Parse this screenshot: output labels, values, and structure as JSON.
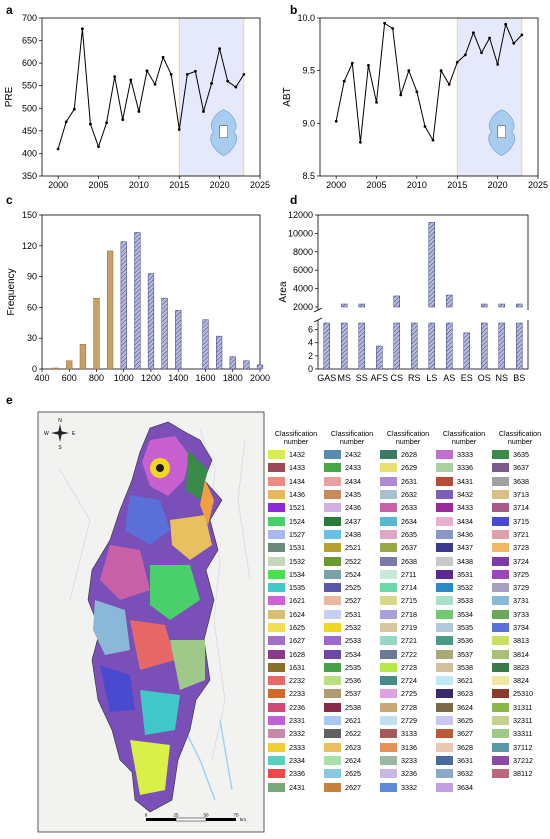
{
  "panel_labels": {
    "a": "a",
    "b": "b",
    "c": "c",
    "d": "d",
    "e": "e"
  },
  "compass": {
    "n": "N",
    "s": "S",
    "e": "E",
    "w": "W"
  },
  "scalebar": {
    "ticks": [
      "0",
      "25",
      "50",
      "75"
    ],
    "unit": "km"
  },
  "legend_header": "Classification number",
  "chart_data": [
    {
      "panel": "a",
      "type": "line",
      "ylabel": "PRE",
      "xlabel": "",
      "xlim": [
        1998,
        2025
      ],
      "ylim": [
        350,
        700
      ],
      "xticks": [
        "2000",
        "2005",
        "2010",
        "2015",
        "2020",
        "2025"
      ],
      "yticks": [
        "350",
        "400",
        "450",
        "500",
        "550",
        "600",
        "650",
        "700"
      ],
      "x": [
        2000,
        2001,
        2002,
        2003,
        2004,
        2005,
        2006,
        2007,
        2008,
        2009,
        2010,
        2011,
        2012,
        2013,
        2014,
        2015,
        2016,
        2017,
        2018,
        2019,
        2020,
        2021,
        2022,
        2023
      ],
      "values": [
        410,
        470,
        498,
        676,
        465,
        415,
        468,
        570,
        475,
        563,
        493,
        583,
        553,
        613,
        575,
        453,
        575,
        582,
        493,
        555,
        632,
        560,
        547,
        575
      ],
      "highlight_range": [
        2015,
        2023
      ]
    },
    {
      "panel": "b",
      "type": "line",
      "ylabel": "ABT",
      "xlabel": "",
      "xlim": [
        1998,
        2025
      ],
      "ylim": [
        8.5,
        10.0
      ],
      "xticks": [
        "2000",
        "2005",
        "2010",
        "2015",
        "2020",
        "2025"
      ],
      "yticks": [
        "8.5",
        "9.0",
        "9.5",
        "10.0"
      ],
      "x": [
        2000,
        2001,
        2002,
        2003,
        2004,
        2005,
        2006,
        2007,
        2008,
        2009,
        2010,
        2011,
        2012,
        2013,
        2014,
        2015,
        2016,
        2017,
        2018,
        2019,
        2020,
        2021,
        2022,
        2023
      ],
      "values": [
        9.02,
        9.4,
        9.57,
        8.82,
        9.55,
        9.2,
        9.95,
        9.9,
        9.27,
        9.5,
        9.3,
        8.97,
        8.84,
        9.5,
        9.37,
        9.58,
        9.65,
        9.86,
        9.67,
        9.81,
        9.56,
        9.94,
        9.76,
        9.84
      ],
      "highlight_range": [
        2015,
        2023
      ]
    },
    {
      "panel": "c",
      "type": "bar",
      "ylabel": "Frequency",
      "xlabel": "",
      "xlim": [
        400,
        2000
      ],
      "ylim": [
        0,
        150
      ],
      "xticks": [
        "400",
        "600",
        "800",
        "1000",
        "1200",
        "1400",
        "1600",
        "1800",
        "2000"
      ],
      "yticks": [
        "0",
        "30",
        "60",
        "90",
        "120",
        "150"
      ],
      "series": [
        {
          "style": "solid",
          "x": [
            500,
            600,
            700,
            800,
            900
          ],
          "values": [
            1,
            8,
            24,
            69,
            115
          ]
        },
        {
          "style": "hatched",
          "x": [
            1000,
            1100,
            1200,
            1300,
            1400,
            1500,
            1600,
            1700,
            1800,
            1900,
            2000
          ],
          "values": [
            124,
            133,
            93,
            69,
            57,
            0,
            48,
            32,
            12,
            8,
            4
          ]
        }
      ]
    },
    {
      "panel": "d",
      "type": "bar",
      "ylabel": "Area",
      "xlabel": "",
      "categories": [
        "GAS",
        "MS",
        "SS",
        "AFS",
        "CS",
        "RS",
        "LS",
        "AS",
        "ES",
        "OS",
        "NS",
        "BS"
      ],
      "values": [
        7,
        350,
        1400,
        3.5,
        3200,
        7,
        11200,
        3300,
        5.5,
        350,
        550,
        350
      ],
      "axis_break": true,
      "yticks_upper": [
        "2000",
        "4000",
        "6000",
        "8000",
        "10000",
        "12000"
      ],
      "yticks_lower": [
        "0",
        "2",
        "4",
        "6"
      ]
    }
  ],
  "legend_columns": [
    {
      "items": [
        {
          "code": "1432",
          "color": "#d8f048"
        },
        {
          "code": "1433",
          "color": "#9c4a5a"
        },
        {
          "code": "1434",
          "color": "#ee8a80"
        },
        {
          "code": "1436",
          "color": "#e8b860"
        },
        {
          "code": "1521",
          "color": "#8a2ad8"
        },
        {
          "code": "1524",
          "color": "#4ad06a"
        },
        {
          "code": "1527",
          "color": "#aab8f0"
        },
        {
          "code": "1531",
          "color": "#6a8a7a"
        },
        {
          "code": "1532",
          "color": "#c4d8b8"
        },
        {
          "code": "1534",
          "color": "#4ae04a"
        },
        {
          "code": "1535",
          "color": "#40c8c8"
        },
        {
          "code": "1621",
          "color": "#d060d8"
        },
        {
          "code": "1624",
          "color": "#d8c070"
        },
        {
          "code": "1625",
          "color": "#f0e050"
        },
        {
          "code": "1627",
          "color": "#a070c8"
        },
        {
          "code": "1628",
          "color": "#8a3a8a"
        },
        {
          "code": "1631",
          "color": "#8a7028"
        },
        {
          "code": "2232",
          "color": "#e86868"
        },
        {
          "code": "2233",
          "color": "#d06a28"
        },
        {
          "code": "2236",
          "color": "#d04878"
        },
        {
          "code": "2331",
          "color": "#c060d8"
        },
        {
          "code": "2332",
          "color": "#c88aa8"
        },
        {
          "code": "2333",
          "color": "#f0d030"
        },
        {
          "code": "2334",
          "color": "#58d0c0"
        },
        {
          "code": "2336",
          "color": "#f04848"
        },
        {
          "code": "2431",
          "color": "#78a878"
        }
      ]
    },
    {
      "items": [
        {
          "code": "2432",
          "color": "#5a8ab0"
        },
        {
          "code": "2433",
          "color": "#48a848"
        },
        {
          "code": "2434",
          "color": "#e8a0a0"
        },
        {
          "code": "2435",
          "color": "#c88a60"
        },
        {
          "code": "2436",
          "color": "#d0b0e0"
        },
        {
          "code": "2437",
          "color": "#2a7a3a"
        },
        {
          "code": "2438",
          "color": "#68c0e8"
        },
        {
          "code": "2521",
          "color": "#b8a030"
        },
        {
          "code": "2522",
          "color": "#6a9a30"
        },
        {
          "code": "2524",
          "color": "#7aa0a8"
        },
        {
          "code": "2525",
          "color": "#5a58a8"
        },
        {
          "code": "2527",
          "color": "#e8b8a0"
        },
        {
          "code": "2531",
          "color": "#c8d0f0"
        },
        {
          "code": "2532",
          "color": "#f0d820"
        },
        {
          "code": "2533",
          "color": "#9a6ad0"
        },
        {
          "code": "2534",
          "color": "#6a48a8"
        },
        {
          "code": "2535",
          "color": "#4aa048"
        },
        {
          "code": "2536",
          "color": "#b8e080"
        },
        {
          "code": "2537",
          "color": "#b09a70"
        },
        {
          "code": "2538",
          "color": "#8a2a4a"
        },
        {
          "code": "2621",
          "color": "#a8c8f0"
        },
        {
          "code": "2622",
          "color": "#606060"
        },
        {
          "code": "2623",
          "color": "#e8c060"
        },
        {
          "code": "2624",
          "color": "#a8e0a8"
        },
        {
          "code": "2625",
          "color": "#8ac8e0"
        },
        {
          "code": "2627",
          "color": "#c88040"
        }
      ]
    },
    {
      "items": [
        {
          "code": "2628",
          "color": "#3a7a68"
        },
        {
          "code": "2629",
          "color": "#e8e070"
        },
        {
          "code": "2631",
          "color": "#b08ad0"
        },
        {
          "code": "2632",
          "color": "#a8c0d0"
        },
        {
          "code": "2633",
          "color": "#c860a8"
        },
        {
          "code": "2634",
          "color": "#58b8d0"
        },
        {
          "code": "2635",
          "color": "#e0a8c8"
        },
        {
          "code": "2637",
          "color": "#98a848"
        },
        {
          "code": "2638",
          "color": "#7a7aa8"
        },
        {
          "code": "2711",
          "color": "#c8e8d8"
        },
        {
          "code": "2714",
          "color": "#6ad8a8"
        },
        {
          "code": "2715",
          "color": "#d8d888"
        },
        {
          "code": "2718",
          "color": "#a8a0d8"
        },
        {
          "code": "2719",
          "color": "#d8c8a0"
        },
        {
          "code": "2721",
          "color": "#98d8c0"
        },
        {
          "code": "2722",
          "color": "#6a7a98"
        },
        {
          "code": "2723",
          "color": "#b8e848"
        },
        {
          "code": "2724",
          "color": "#4a8a8a"
        },
        {
          "code": "2725",
          "color": "#e0a0e0"
        },
        {
          "code": "2728",
          "color": "#c8a878"
        },
        {
          "code": "2729",
          "color": "#c0e0f0"
        },
        {
          "code": "3133",
          "color": "#a85858"
        },
        {
          "code": "3136",
          "color": "#e89058"
        },
        {
          "code": "3233",
          "color": "#9ab8a0"
        },
        {
          "code": "3236",
          "color": "#c8b8e8"
        },
        {
          "code": "3332",
          "color": "#5a8ad8"
        }
      ]
    },
    {
      "items": [
        {
          "code": "3333",
          "color": "#c070c8"
        },
        {
          "code": "3336",
          "color": "#a8d0a0"
        },
        {
          "code": "3431",
          "color": "#b84a3a"
        },
        {
          "code": "3432",
          "color": "#7a60b8"
        },
        {
          "code": "3433",
          "color": "#9a2a9a"
        },
        {
          "code": "3434",
          "color": "#e8b0d0"
        },
        {
          "code": "3436",
          "color": "#8a98c8"
        },
        {
          "code": "3437",
          "color": "#3a3a90"
        },
        {
          "code": "3438",
          "color": "#c8c8c8"
        },
        {
          "code": "3531",
          "color": "#5a2a90"
        },
        {
          "code": "3532",
          "color": "#2a8ac8"
        },
        {
          "code": "3533",
          "color": "#a8e0c8"
        },
        {
          "code": "3534",
          "color": "#70c870"
        },
        {
          "code": "3535",
          "color": "#b0c8d8"
        },
        {
          "code": "3536",
          "color": "#4a9a8a"
        },
        {
          "code": "3537",
          "color": "#a8a878"
        },
        {
          "code": "3538",
          "color": "#d0c0a0"
        },
        {
          "code": "3621",
          "color": "#c0e8f0"
        },
        {
          "code": "3623",
          "color": "#3a2a6a"
        },
        {
          "code": "3624",
          "color": "#7a6a48"
        },
        {
          "code": "3625",
          "color": "#c8c8f0"
        },
        {
          "code": "3627",
          "color": "#b85a3a"
        },
        {
          "code": "3628",
          "color": "#e8c8b0"
        },
        {
          "code": "3631",
          "color": "#4a6a98"
        },
        {
          "code": "3632",
          "color": "#8aa8c8"
        },
        {
          "code": "3634",
          "color": "#c0a0e0"
        }
      ]
    },
    {
      "items": [
        {
          "code": "3635",
          "color": "#3a8a4a"
        },
        {
          "code": "3637",
          "color": "#7a5a8a"
        },
        {
          "code": "3638",
          "color": "#a0a0a0"
        },
        {
          "code": "3713",
          "color": "#d8c088"
        },
        {
          "code": "3714",
          "color": "#a85a88"
        },
        {
          "code": "3715",
          "color": "#4a4ad0"
        },
        {
          "code": "3721",
          "color": "#e0a0a8"
        },
        {
          "code": "3723",
          "color": "#f0b860"
        },
        {
          "code": "3724",
          "color": "#7a3aa8"
        },
        {
          "code": "3725",
          "color": "#9a48b8"
        },
        {
          "code": "3729",
          "color": "#a8a0c0"
        },
        {
          "code": "3731",
          "color": "#8ab8d8"
        },
        {
          "code": "3733",
          "color": "#6aa858"
        },
        {
          "code": "3734",
          "color": "#5a70d8"
        },
        {
          "code": "3813",
          "color": "#c8e060"
        },
        {
          "code": "3814",
          "color": "#a8c078"
        },
        {
          "code": "3823",
          "color": "#3a7a4a"
        },
        {
          "code": "3824",
          "color": "#f0e8a0"
        },
        {
          "code": "25310",
          "color": "#8a3a28"
        },
        {
          "code": "31311",
          "color": "#8ab848"
        },
        {
          "code": "32311",
          "color": "#c8d090"
        },
        {
          "code": "33311",
          "color": "#a0c888"
        },
        {
          "code": "37112",
          "color": "#5a98a8"
        },
        {
          "code": "37212",
          "color": "#8a4aa8"
        },
        {
          "code": "38112",
          "color": "#b86a7a"
        }
      ]
    }
  ]
}
